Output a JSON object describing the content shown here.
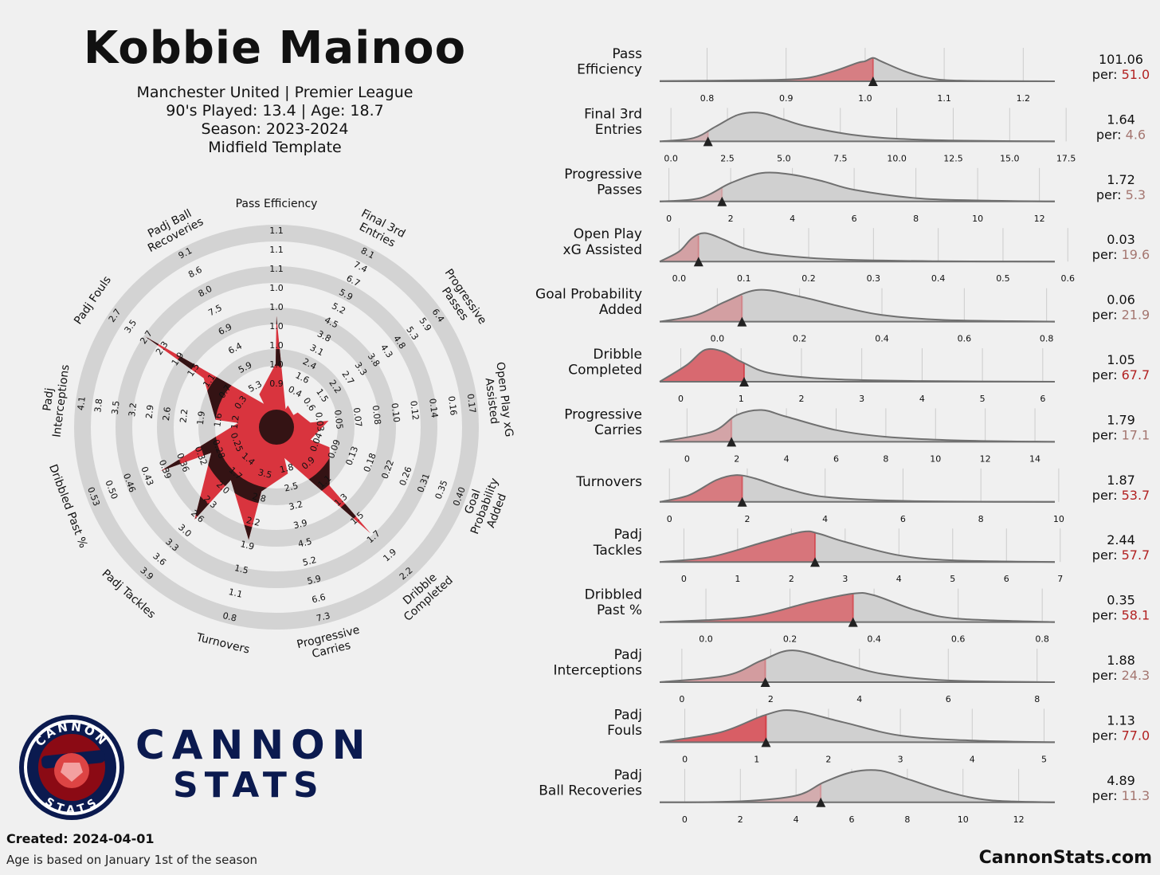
{
  "header": {
    "player_name": "Kobbie Mainoo",
    "club_line": "Manchester United | Premier League",
    "played_line": "90's Played: 13.4 | Age: 18.7",
    "season_line": "Season: 2023-2024",
    "template_line": "Midfield Template"
  },
  "footer": {
    "created": "Created: 2024-04-01",
    "age_note": "Age is based on January 1st of the season",
    "website": "CannonStats.com",
    "brand_line1": "CANNON",
    "brand_line2": "STATS",
    "logo_top_text": "CANNON",
    "logo_bottom_text": "STATS"
  },
  "colors": {
    "background": "#f0f0f0",
    "radar_ring": "#d3d3d3",
    "radar_red": "#d9343e",
    "radar_dark": "#341314",
    "dist_fill": "#d0d0d0",
    "dist_line": "#707070",
    "pct_low": "#a47670",
    "pct_high": "#b22222",
    "brand_navy": "#0b1a4f"
  },
  "chart_data": [
    {
      "type": "radar",
      "chart_id": "pizza",
      "categories": [
        "Pass Efficiency",
        "Final 3rd\nEntries",
        "Progressive\nPasses",
        "Open Play xG\nAssisted",
        "Goal\nProbability\nAdded",
        "Dribble\nCompleted",
        "Progressive\nCarries",
        "Turnovers",
        "Padj Tackles",
        "Dribbled Past %",
        "Padj\nInterceptions",
        "Padj Fouls",
        "Padj Ball\nRecoveries"
      ],
      "percentiles": [
        51.0,
        4.6,
        5.3,
        19.6,
        21.9,
        67.7,
        17.1,
        53.7,
        57.7,
        58.1,
        24.3,
        77.0,
        11.3
      ],
      "tick_labels": [
        [
          "0.9",
          "1.0",
          "1.0",
          "1.0",
          "1.0",
          "1.0",
          "1.1",
          "1.1",
          "1.1"
        ],
        [
          "0.4",
          "1.6",
          "2.4",
          "3.1",
          "3.8",
          "4.5",
          "5.2",
          "5.9",
          "6.7",
          "7.4",
          "8.1"
        ],
        [
          "0.6",
          "1.5",
          "2.2",
          "2.7",
          "3.3",
          "3.8",
          "4.3",
          "4.8",
          "5.3",
          "5.9",
          "6.4"
        ],
        [
          "0.03",
          "0.05",
          "0.07",
          "0.08",
          "0.10",
          "0.12",
          "0.14",
          "0.16",
          "0.17"
        ],
        [
          "0.04",
          "0.09",
          "0.13",
          "0.18",
          "0.22",
          "0.26",
          "0.31",
          "0.35",
          "0.40"
        ],
        [
          "0.9",
          "1.1",
          "1.3",
          "1.5",
          "1.7",
          "1.9",
          "2.2"
        ],
        [
          "1.8",
          "2.5",
          "3.2",
          "3.9",
          "4.5",
          "5.2",
          "5.9",
          "6.6",
          "7.3"
        ],
        [
          "3.5",
          "2.8",
          "2.2",
          "1.9",
          "1.5",
          "1.1",
          "0.8"
        ],
        [
          "1.4",
          "1.7",
          "2.0",
          "2.3",
          "2.6",
          "3.0",
          "3.3",
          "3.6",
          "3.9"
        ],
        [
          "0.25",
          "0.28",
          "0.32",
          "0.36",
          "0.39",
          "0.43",
          "0.46",
          "0.50",
          "0.53"
        ],
        [
          "1.2",
          "1.6",
          "1.9",
          "2.2",
          "2.6",
          "2.9",
          "3.2",
          "3.5",
          "3.8",
          "4.1"
        ],
        [
          "0.3",
          "0.7",
          "1.1",
          "1.5",
          "1.9",
          "2.3",
          "2.7",
          "3.5",
          "2.7"
        ],
        [
          "5.3",
          "5.9",
          "6.4",
          "6.9",
          "7.5",
          "8.0",
          "8.6",
          "9.1"
        ]
      ]
    },
    {
      "type": "area",
      "chart_id": "distributions",
      "metrics": [
        {
          "label": "Pass\nEfficiency",
          "value": "101.06",
          "percentile": "51.0",
          "player_x": 1.01,
          "xlim": [
            0.74,
            1.24
          ],
          "ticks": [
            0.8,
            0.9,
            1.0,
            1.1,
            1.2
          ],
          "tick_labels": [
            "0.8",
            "0.9",
            "1.0",
            "1.1",
            "1.2"
          ],
          "density": [
            [
              0.74,
              0.01
            ],
            [
              0.85,
              0.03
            ],
            [
              0.92,
              0.08
            ],
            [
              0.96,
              0.3
            ],
            [
              0.99,
              0.55
            ],
            [
              1.0,
              0.6
            ],
            [
              1.01,
              0.7
            ],
            [
              1.02,
              0.6
            ],
            [
              1.05,
              0.3
            ],
            [
              1.08,
              0.1
            ],
            [
              1.12,
              0.02
            ],
            [
              1.24,
              0.0
            ]
          ]
        },
        {
          "label": "Final 3rd\nEntries",
          "value": "1.64",
          "percentile": "4.6",
          "player_x": 1.64,
          "xlim": [
            -0.5,
            17
          ],
          "ticks": [
            0,
            2.5,
            5,
            7.5,
            10,
            12.5,
            15,
            17.5
          ],
          "tick_labels": [
            "0.0",
            "2.5",
            "5.0",
            "7.5",
            "10.0",
            "12.5",
            "15.0",
            "17.5"
          ],
          "density": [
            [
              -0.5,
              0.0
            ],
            [
              1,
              0.1
            ],
            [
              2,
              0.45
            ],
            [
              3,
              0.8
            ],
            [
              4,
              0.85
            ],
            [
              5,
              0.65
            ],
            [
              6,
              0.45
            ],
            [
              8,
              0.2
            ],
            [
              10,
              0.08
            ],
            [
              13,
              0.02
            ],
            [
              17,
              0.0
            ]
          ]
        },
        {
          "label": "Progressive\nPasses",
          "value": "1.72",
          "percentile": "5.3",
          "player_x": 1.72,
          "xlim": [
            -0.3,
            12.5
          ],
          "ticks": [
            0,
            2,
            4,
            6,
            8,
            10,
            12
          ],
          "tick_labels": [
            "0",
            "2",
            "4",
            "6",
            "8",
            "10",
            "12"
          ],
          "density": [
            [
              -0.3,
              0.0
            ],
            [
              1,
              0.1
            ],
            [
              2,
              0.55
            ],
            [
              3,
              0.85
            ],
            [
              4,
              0.8
            ],
            [
              5,
              0.6
            ],
            [
              6,
              0.35
            ],
            [
              8,
              0.1
            ],
            [
              10,
              0.03
            ],
            [
              12.5,
              0.0
            ]
          ]
        },
        {
          "label": "Open Play\nxG Assisted",
          "value": "0.03",
          "percentile": "19.6",
          "player_x": 0.03,
          "xlim": [
            -0.03,
            0.58
          ],
          "ticks": [
            0,
            0.1,
            0.2,
            0.3,
            0.4,
            0.5,
            0.6
          ],
          "tick_labels": [
            "0.0",
            "0.1",
            "0.2",
            "0.3",
            "0.4",
            "0.5",
            "0.6"
          ],
          "density": [
            [
              -0.03,
              0.0
            ],
            [
              0.0,
              0.3
            ],
            [
              0.02,
              0.7
            ],
            [
              0.04,
              0.85
            ],
            [
              0.07,
              0.65
            ],
            [
              0.1,
              0.4
            ],
            [
              0.15,
              0.2
            ],
            [
              0.25,
              0.06
            ],
            [
              0.4,
              0.01
            ],
            [
              0.58,
              0.0
            ]
          ]
        },
        {
          "label": "Goal Probability\nAdded",
          "value": "0.06",
          "percentile": "21.9",
          "player_x": 0.06,
          "xlim": [
            -0.14,
            0.82
          ],
          "ticks": [
            0,
            0.2,
            0.4,
            0.6,
            0.8
          ],
          "tick_labels": [
            "0.0",
            "0.2",
            "0.4",
            "0.6",
            "0.8"
          ],
          "density": [
            [
              -0.14,
              0.0
            ],
            [
              -0.05,
              0.2
            ],
            [
              0.02,
              0.6
            ],
            [
              0.1,
              0.95
            ],
            [
              0.2,
              0.75
            ],
            [
              0.3,
              0.45
            ],
            [
              0.4,
              0.2
            ],
            [
              0.55,
              0.05
            ],
            [
              0.82,
              0.0
            ]
          ]
        },
        {
          "label": "Dribble\nCompleted",
          "value": "1.05",
          "percentile": "67.7",
          "player_x": 1.05,
          "xlim": [
            -0.35,
            6.2
          ],
          "ticks": [
            0,
            1,
            2,
            3,
            4,
            5,
            6
          ],
          "tick_labels": [
            "0",
            "1",
            "2",
            "3",
            "4",
            "5",
            "6"
          ],
          "density": [
            [
              -0.35,
              0.0
            ],
            [
              0.1,
              0.5
            ],
            [
              0.4,
              0.95
            ],
            [
              0.7,
              0.9
            ],
            [
              1.0,
              0.6
            ],
            [
              1.5,
              0.25
            ],
            [
              2.5,
              0.08
            ],
            [
              4,
              0.02
            ],
            [
              6.2,
              0.0
            ]
          ]
        },
        {
          "label": "Progressive\nCarries",
          "value": "1.79",
          "percentile": "17.1",
          "player_x": 1.79,
          "xlim": [
            -1.1,
            14.8
          ],
          "ticks": [
            0,
            2,
            4,
            6,
            8,
            10,
            12,
            14
          ],
          "tick_labels": [
            "0",
            "2",
            "4",
            "6",
            "8",
            "10",
            "12",
            "14"
          ],
          "density": [
            [
              -1.1,
              0.0
            ],
            [
              1,
              0.3
            ],
            [
              2,
              0.8
            ],
            [
              3,
              0.95
            ],
            [
              4,
              0.75
            ],
            [
              6,
              0.35
            ],
            [
              8,
              0.15
            ],
            [
              11,
              0.04
            ],
            [
              14.8,
              0.0
            ]
          ]
        },
        {
          "label": "Turnovers",
          "value": "1.87",
          "percentile": "53.7",
          "player_x": 1.87,
          "xlim": [
            -0.25,
            9.9
          ],
          "ticks": [
            0,
            2,
            4,
            6,
            8,
            10
          ],
          "tick_labels": [
            "0",
            "2",
            "4",
            "6",
            "8",
            "10"
          ],
          "density": [
            [
              -0.25,
              0.0
            ],
            [
              0.5,
              0.2
            ],
            [
              1.2,
              0.65
            ],
            [
              1.7,
              0.8
            ],
            [
              2.2,
              0.7
            ],
            [
              3,
              0.4
            ],
            [
              4,
              0.15
            ],
            [
              6,
              0.03
            ],
            [
              9.9,
              0.0
            ]
          ]
        },
        {
          "label": "Padj\nTackles",
          "value": "2.44",
          "percentile": "57.7",
          "player_x": 2.44,
          "xlim": [
            -0.45,
            6.9
          ],
          "ticks": [
            0,
            1,
            2,
            3,
            4,
            5,
            6,
            7
          ],
          "tick_labels": [
            "0",
            "1",
            "2",
            "3",
            "4",
            "5",
            "6",
            "7"
          ],
          "density": [
            [
              -0.45,
              0.0
            ],
            [
              0.5,
              0.15
            ],
            [
              1.5,
              0.6
            ],
            [
              2.2,
              0.9
            ],
            [
              2.5,
              0.85
            ],
            [
              3,
              0.6
            ],
            [
              4,
              0.2
            ],
            [
              5,
              0.05
            ],
            [
              6.9,
              0.0
            ]
          ]
        },
        {
          "label": "Dribbled\nPast %",
          "value": "0.35",
          "percentile": "58.1",
          "player_x": 0.35,
          "xlim": [
            -0.11,
            0.83
          ],
          "ticks": [
            0,
            0.2,
            0.4,
            0.6,
            0.8
          ],
          "tick_labels": [
            "0.0",
            "0.2",
            "0.4",
            "0.6",
            "0.8"
          ],
          "density": [
            [
              -0.11,
              0.0
            ],
            [
              0.1,
              0.15
            ],
            [
              0.25,
              0.6
            ],
            [
              0.35,
              0.85
            ],
            [
              0.4,
              0.8
            ],
            [
              0.5,
              0.35
            ],
            [
              0.6,
              0.1
            ],
            [
              0.83,
              0.0
            ]
          ]
        },
        {
          "label": "Padj\nInterceptions",
          "value": "1.88",
          "percentile": "24.3",
          "player_x": 1.88,
          "xlim": [
            -0.5,
            8.4
          ],
          "ticks": [
            0,
            2,
            4,
            6,
            8
          ],
          "tick_labels": [
            "0",
            "2",
            "4",
            "6",
            "8"
          ],
          "density": [
            [
              -0.5,
              0.0
            ],
            [
              1,
              0.2
            ],
            [
              1.8,
              0.65
            ],
            [
              2.5,
              0.95
            ],
            [
              3.5,
              0.6
            ],
            [
              4.5,
              0.25
            ],
            [
              6,
              0.05
            ],
            [
              8.4,
              0.0
            ]
          ]
        },
        {
          "label": "Padj\nFouls",
          "value": "1.13",
          "percentile": "77.0",
          "player_x": 1.13,
          "xlim": [
            -0.35,
            5.15
          ],
          "ticks": [
            0,
            1,
            2,
            3,
            4,
            5
          ],
          "tick_labels": [
            "0",
            "1",
            "2",
            "3",
            "4",
            "5"
          ],
          "density": [
            [
              -0.35,
              0.0
            ],
            [
              0.5,
              0.3
            ],
            [
              1.1,
              0.8
            ],
            [
              1.5,
              0.95
            ],
            [
              2.2,
              0.6
            ],
            [
              3,
              0.2
            ],
            [
              4,
              0.05
            ],
            [
              5.15,
              0.0
            ]
          ]
        },
        {
          "label": "Padj\nBall Recoveries",
          "value": "4.89",
          "percentile": "11.3",
          "player_x": 4.89,
          "xlim": [
            -0.9,
            13.3
          ],
          "ticks": [
            0,
            2,
            4,
            6,
            8,
            10,
            12
          ],
          "tick_labels": [
            "0",
            "2",
            "4",
            "6",
            "8",
            "10",
            "12"
          ],
          "density": [
            [
              -0.9,
              0.0
            ],
            [
              2,
              0.03
            ],
            [
              4,
              0.2
            ],
            [
              5,
              0.6
            ],
            [
              6,
              0.9
            ],
            [
              7,
              0.95
            ],
            [
              8,
              0.7
            ],
            [
              9.5,
              0.3
            ],
            [
              11,
              0.06
            ],
            [
              13.3,
              0.0
            ]
          ]
        }
      ]
    }
  ]
}
